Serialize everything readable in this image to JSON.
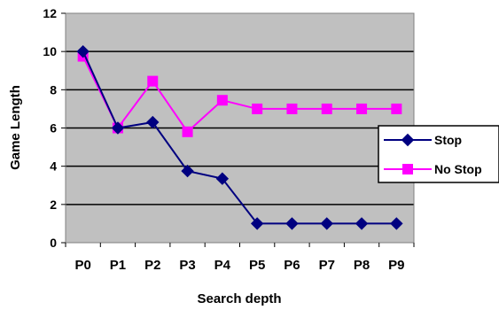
{
  "chart_data": {
    "type": "line",
    "categories": [
      "P0",
      "P1",
      "P2",
      "P3",
      "P4",
      "P5",
      "P6",
      "P7",
      "P8",
      "P9"
    ],
    "series": [
      {
        "name": "Stop",
        "color": "#000080",
        "marker": "diamond",
        "values": [
          10,
          6,
          6.3,
          3.75,
          3.35,
          1,
          1,
          1,
          1,
          1
        ]
      },
      {
        "name": "No Stop",
        "color": "#FF00FF",
        "marker": "square",
        "values": [
          9.75,
          6,
          8.45,
          5.8,
          7.45,
          7,
          7,
          7,
          7,
          7
        ]
      }
    ],
    "xlabel": "Search depth",
    "ylabel": "Game Length",
    "ylim": [
      0,
      12
    ],
    "yticks": [
      "0",
      "2",
      "4",
      "6",
      "8",
      "10",
      "12"
    ],
    "grid": true,
    "plot_background": "#C0C0C0",
    "legend_position": "right"
  }
}
